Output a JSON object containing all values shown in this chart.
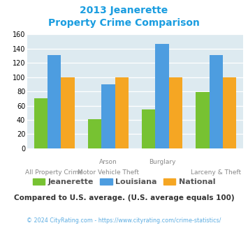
{
  "title_line1": "2013 Jeanerette",
  "title_line2": "Property Crime Comparison",
  "cat_labels_top": [
    "",
    "Arson",
    "Burglary",
    ""
  ],
  "cat_labels_bottom": [
    "All Property Crime",
    "Motor Vehicle Theft",
    "",
    "Larceny & Theft"
  ],
  "jeanerette": [
    70,
    41,
    55,
    79
  ],
  "louisiana": [
    131,
    90,
    147,
    131
  ],
  "national": [
    100,
    100,
    100,
    100
  ],
  "colors": {
    "jeanerette": "#77c232",
    "louisiana": "#4d9de0",
    "national": "#f5a623"
  },
  "ylim": [
    0,
    160
  ],
  "yticks": [
    0,
    20,
    40,
    60,
    80,
    100,
    120,
    140,
    160
  ],
  "plot_bg": "#ddeaf0",
  "title_color": "#1a9de0",
  "legend_labels": [
    "Jeanerette",
    "Louisiana",
    "National"
  ],
  "legend_text_color": "#555555",
  "footer_text": "Compared to U.S. average. (U.S. average equals 100)",
  "copyright_text": "© 2024 CityRating.com - https://www.cityrating.com/crime-statistics/",
  "footer_color": "#333333",
  "copyright_color": "#5dade2",
  "xlabel_color": "#888888"
}
